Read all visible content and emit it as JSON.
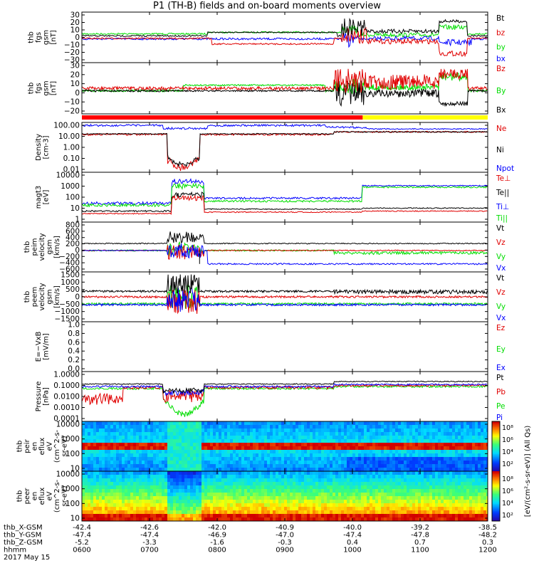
{
  "title": "P1 (TH-B) fields and on-board moments overview",
  "colors": {
    "black": "#000000",
    "red": "#e00000",
    "green": "#00dd00",
    "blue": "#0000ff",
    "bar_red": "#ff0000",
    "bar_yellow": "#ffff00"
  },
  "chart_data": [
    {
      "type": "line",
      "id": "fgs_gsm",
      "ylabel": [
        "thb",
        "fgs",
        "gsm",
        "[nT]"
      ],
      "yticks": [
        "30",
        "20",
        "10",
        "0",
        "−10",
        "−20",
        "−30"
      ],
      "ylim": [
        -30,
        30
      ],
      "legend": [
        {
          "name": "Bt",
          "color": "black"
        },
        {
          "name": "bz",
          "color": "red"
        },
        {
          "name": "by",
          "color": "green"
        },
        {
          "name": "bx",
          "color": "blue"
        }
      ]
    },
    {
      "type": "line",
      "id": "fgs_gsm_zoom",
      "ylabel": [
        "thb",
        "fgs",
        "gsm",
        "[nT]"
      ],
      "yticks": [
        "30",
        "20",
        "10",
        "0",
        "−10",
        "−20"
      ],
      "ylim": [
        -28,
        30
      ],
      "legend": [
        {
          "name": "Bz",
          "color": "red"
        },
        {
          "name": "By",
          "color": "green"
        },
        {
          "name": "Bx",
          "color": "black"
        }
      ]
    },
    {
      "type": "line",
      "id": "density",
      "scale": "log",
      "ylabel": [
        "Density",
        "[cm-3]"
      ],
      "yticks": [
        "100.00",
        "10.00",
        "1.00",
        "0.10",
        "0.01"
      ],
      "legend": [
        {
          "name": "Ne",
          "color": "red"
        },
        {
          "name": "Ni",
          "color": "black"
        },
        {
          "name": "Npot",
          "color": "blue"
        }
      ]
    },
    {
      "type": "line",
      "id": "temperature",
      "scale": "log",
      "ylabel": [
        "magt3",
        "[eV]"
      ],
      "yticks": [
        "10000",
        "1000",
        "100",
        "10",
        "1"
      ],
      "legend": [
        {
          "name": "Te⊥",
          "color": "red"
        },
        {
          "name": "Te||",
          "color": "black"
        },
        {
          "name": "Ti⊥",
          "color": "blue"
        },
        {
          "name": "Ti||",
          "color": "green"
        }
      ]
    },
    {
      "type": "line",
      "id": "peim_velocity",
      "ylabel": [
        "thb",
        "peim",
        "velocity",
        "gsm",
        "[km/s]"
      ],
      "yticks": [
        "800",
        "600",
        "400",
        "200",
        "0",
        "−200",
        "−400",
        "−600"
      ],
      "ylim": [
        -600,
        800
      ],
      "legend": [
        {
          "name": "Vt",
          "color": "black"
        },
        {
          "name": "Vz",
          "color": "red"
        },
        {
          "name": "Vy",
          "color": "green"
        },
        {
          "name": "Vx",
          "color": "blue"
        }
      ]
    },
    {
      "type": "line",
      "id": "peem_velocity",
      "ylabel": [
        "thb",
        "peem",
        "velocity",
        "gsm",
        "[km/s]"
      ],
      "yticks": [
        "1500",
        "1000",
        "500",
        "0",
        "−500",
        "−1000",
        "−1500"
      ],
      "ylim": [
        -1500,
        1500
      ],
      "legend": [
        {
          "name": "Vt",
          "color": "black"
        },
        {
          "name": "Vz",
          "color": "red"
        },
        {
          "name": "Vy",
          "color": "green"
        },
        {
          "name": "Vx",
          "color": "blue"
        }
      ]
    },
    {
      "type": "line",
      "id": "efield",
      "ylabel": [
        "E=−VxB",
        "[mV/m]"
      ],
      "yticks": [
        "1.0",
        "0.8",
        "0.6",
        "0.4",
        "0.2",
        "0.0"
      ],
      "ylim": [
        0,
        1
      ],
      "legend": [
        {
          "name": "Ez",
          "color": "red"
        },
        {
          "name": "Ey",
          "color": "green"
        },
        {
          "name": "Ex",
          "color": "blue"
        }
      ]
    },
    {
      "type": "line",
      "id": "pressure",
      "scale": "log",
      "ylabel": [
        "Pressure",
        "[nPa]"
      ],
      "yticks": [
        "1.0000",
        "0.1000",
        "0.0100",
        "0.0010",
        "0.0001"
      ],
      "legend": [
        {
          "name": "Pt",
          "color": "black"
        },
        {
          "name": "Pb",
          "color": "red"
        },
        {
          "name": "Pe",
          "color": "green"
        },
        {
          "name": "Pi",
          "color": "blue"
        }
      ]
    },
    {
      "type": "heatmap",
      "id": "peir_spec",
      "ylabel": [
        "thb",
        "peir",
        "en",
        "eflux",
        "eV",
        "(cm^2-s-",
        "sr-eV)"
      ],
      "yticks": [
        "10000",
        "1000",
        "100",
        "10"
      ]
    },
    {
      "type": "heatmap",
      "id": "peer_spec",
      "ylabel": [
        "thb",
        "peer",
        "en",
        "eflux",
        "eV",
        "(cm^2-s-",
        "sr-eV)"
      ],
      "yticks": [
        "10000",
        "1000",
        "100",
        "10"
      ]
    }
  ],
  "colorbar": {
    "label": "[eV/(cm²-s-sr-eV)] (All Qs)",
    "upper_ticks": [
      "10⁸",
      "10⁶",
      "10⁴",
      "10²"
    ],
    "lower_ticks": [
      "10⁸",
      "10⁶",
      "10⁴",
      "10²"
    ]
  },
  "xaxis": {
    "rows": [
      {
        "label": "thb_X-GSM",
        "values": [
          "-42.4",
          "-42.6",
          "-42.0",
          "-40.9",
          "-40.0",
          "-39.2",
          "-38.5"
        ]
      },
      {
        "label": "thb_Y-GSM",
        "values": [
          "-47.4",
          "-47.4",
          "-46.9",
          "-47.0",
          "-47.4",
          "-47.8",
          "-48.2"
        ]
      },
      {
        "label": "thb_Z-GSM",
        "values": [
          "-5.2",
          "-3.3",
          "-1.6",
          "-0.3",
          "0.4",
          "0.7",
          "0.3"
        ]
      },
      {
        "label": "hhmm",
        "values": [
          "0600",
          "0700",
          "0800",
          "0900",
          "1000",
          "1100",
          "1200"
        ]
      }
    ],
    "date": "2017 May 15"
  }
}
